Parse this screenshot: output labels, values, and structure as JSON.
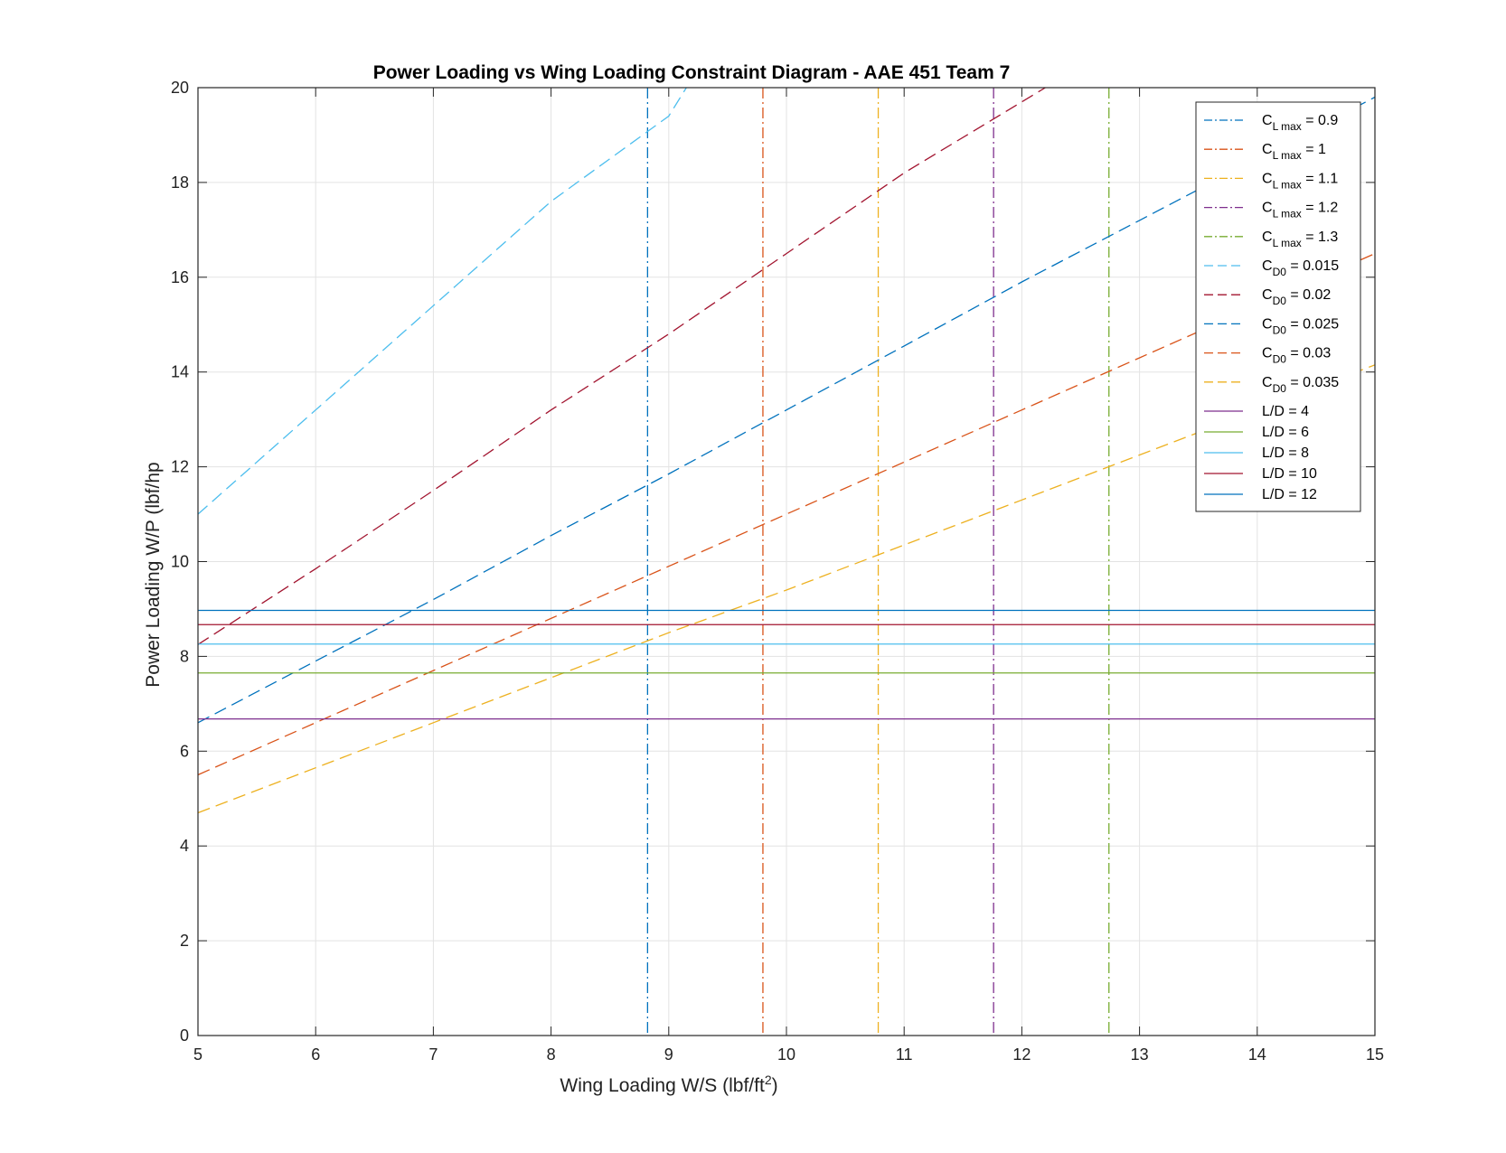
{
  "chart_data": {
    "type": "line",
    "title": "Power Loading vs Wing Loading Constraint Diagram - AAE 451 Team 7",
    "xlabel": "Wing Loading W/S (lbf/ft",
    "xlabel_sup": "2",
    "xlabel_end": ")",
    "ylabel": "Power Loading W/P (lbf/hp",
    "xlim": [
      5,
      15
    ],
    "ylim": [
      0,
      20
    ],
    "xticks": [
      5,
      6,
      7,
      8,
      9,
      10,
      11,
      12,
      13,
      14,
      15
    ],
    "yticks": [
      0,
      2,
      4,
      6,
      8,
      10,
      12,
      14,
      16,
      18,
      20
    ],
    "grid": true,
    "legend_position": "top-right",
    "series": [
      {
        "kind": "vertical",
        "legend_main": "C",
        "legend_sub": "L max",
        "legend_rest": " = 0.9",
        "color": "#0072BD",
        "dash": "dashdot",
        "x": 8.82
      },
      {
        "kind": "vertical",
        "legend_main": "C",
        "legend_sub": "L max",
        "legend_rest": " = 1",
        "color": "#D95319",
        "dash": "dashdot",
        "x": 9.8
      },
      {
        "kind": "vertical",
        "legend_main": "C",
        "legend_sub": "L max",
        "legend_rest": " = 1.1",
        "color": "#EDB120",
        "dash": "dashdot",
        "x": 10.78
      },
      {
        "kind": "vertical",
        "legend_main": "C",
        "legend_sub": "L max",
        "legend_rest": " = 1.2",
        "color": "#7E2F8E",
        "dash": "dashdot",
        "x": 11.76
      },
      {
        "kind": "vertical",
        "legend_main": "C",
        "legend_sub": "L max",
        "legend_rest": " = 1.3",
        "color": "#77AC30",
        "dash": "dashdot",
        "x": 12.74
      },
      {
        "kind": "curve",
        "legend_main": "C",
        "legend_sub": "D0",
        "legend_rest": " = 0.015",
        "color": "#4DBEEE",
        "dash": "dashed",
        "x": [
          5,
          6,
          7,
          8,
          9,
          9.15
        ],
        "y": [
          11.0,
          13.2,
          15.4,
          17.6,
          19.4,
          20.0
        ]
      },
      {
        "kind": "curve",
        "legend_main": "C",
        "legend_sub": "D0",
        "legend_rest": " = 0.02",
        "color": "#A2142F",
        "dash": "dashed",
        "x": [
          5,
          6,
          7,
          8,
          9,
          10,
          11,
          12,
          12.2
        ],
        "y": [
          8.25,
          9.85,
          11.5,
          13.2,
          14.8,
          16.5,
          18.2,
          19.7,
          20.0
        ]
      },
      {
        "kind": "curve",
        "legend_main": "C",
        "legend_sub": "D0",
        "legend_rest": " = 0.025",
        "color": "#0072BD",
        "dash": "dashed",
        "x": [
          5,
          6,
          7,
          8,
          9,
          10,
          11,
          12,
          13,
          14,
          15
        ],
        "y": [
          6.6,
          7.9,
          9.2,
          10.55,
          11.85,
          13.2,
          14.55,
          15.9,
          17.2,
          18.5,
          19.8
        ]
      },
      {
        "kind": "curve",
        "legend_main": "C",
        "legend_sub": "D0",
        "legend_rest": " = 0.03",
        "color": "#D95319",
        "dash": "dashed",
        "x": [
          5,
          6,
          7,
          8,
          9,
          10,
          11,
          12,
          13,
          14,
          15
        ],
        "y": [
          5.5,
          6.6,
          7.7,
          8.8,
          9.9,
          11.0,
          12.1,
          13.2,
          14.3,
          15.4,
          16.5
        ]
      },
      {
        "kind": "curve",
        "legend_main": "C",
        "legend_sub": "D0",
        "legend_rest": " = 0.035",
        "color": "#EDB120",
        "dash": "dashed",
        "x": [
          5,
          6,
          7,
          8,
          9,
          10,
          11,
          12,
          13,
          14,
          15
        ],
        "y": [
          4.7,
          5.65,
          6.6,
          7.55,
          8.5,
          9.4,
          10.35,
          11.3,
          12.25,
          13.2,
          14.15
        ]
      },
      {
        "kind": "horizontal",
        "legend_main": "L/D = 4",
        "legend_sub": "",
        "legend_rest": "",
        "color": "#7E2F8E",
        "dash": "solid",
        "y": 6.68
      },
      {
        "kind": "horizontal",
        "legend_main": "L/D = 6",
        "legend_sub": "",
        "legend_rest": "",
        "color": "#77AC30",
        "dash": "solid",
        "y": 7.65
      },
      {
        "kind": "horizontal",
        "legend_main": "L/D = 8",
        "legend_sub": "",
        "legend_rest": "",
        "color": "#4DBEEE",
        "dash": "solid",
        "y": 8.26
      },
      {
        "kind": "horizontal",
        "legend_main": "L/D = 10",
        "legend_sub": "",
        "legend_rest": "",
        "color": "#A2142F",
        "dash": "solid",
        "y": 8.67
      },
      {
        "kind": "horizontal",
        "legend_main": "L/D = 12",
        "legend_sub": "",
        "legend_rest": "",
        "color": "#0072BD",
        "dash": "solid",
        "y": 8.97
      }
    ]
  }
}
